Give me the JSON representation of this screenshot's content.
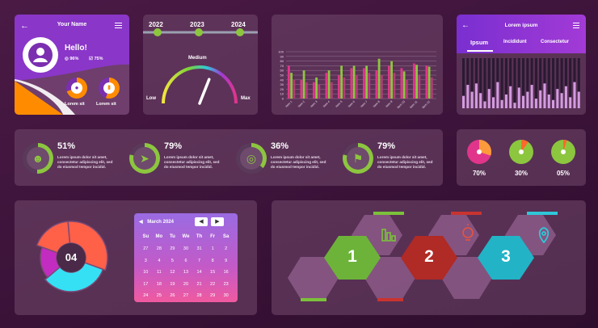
{
  "profile": {
    "title": "Your Name",
    "greeting": "Hello!",
    "stat1": "96%",
    "stat2": "75%",
    "caption1": "Lorem sit",
    "caption2": "Lorem sit"
  },
  "timeline": {
    "years": [
      "2022",
      "2023",
      "2024"
    ]
  },
  "gauge": {
    "label_low": "Low",
    "label_mid": "Medium",
    "label_max": "Max",
    "value_fraction": 0.62
  },
  "bar_chart": {
    "y_ticks": [
      "100",
      "90",
      "80",
      "70",
      "60",
      "50",
      "40",
      "30",
      "20",
      "10",
      "0"
    ],
    "categories": [
      "Item 1",
      "Item 2",
      "Item 3",
      "Item 4",
      "Item 5",
      "Item 6",
      "Item 7",
      "Item 8",
      "Item 9",
      "Item 10",
      "Item 11",
      "Item 12"
    ]
  },
  "chart_data": {
    "type": "bar",
    "categories": [
      "Item 1",
      "Item 2",
      "Item 3",
      "Item 4",
      "Item 5",
      "Item 6",
      "Item 7",
      "Item 8",
      "Item 9",
      "Item 10",
      "Item 11",
      "Item 12"
    ],
    "series": [
      {
        "color": "#e0358a",
        "values": [
          70,
          40,
          35,
          55,
          50,
          65,
          65,
          60,
          70,
          65,
          75,
          70
        ]
      },
      {
        "color": "#8cc63f",
        "values": [
          55,
          60,
          45,
          60,
          70,
          70,
          70,
          85,
          80,
          58,
          72,
          68
        ]
      },
      {
        "color": "#b33c7a",
        "values": [
          40,
          35,
          30,
          35,
          45,
          50,
          55,
          50,
          55,
          40,
          50,
          45
        ]
      }
    ],
    "ylim": [
      0,
      100
    ]
  },
  "tabs_panel": {
    "title": "Lorem ipsum",
    "tabs": [
      "Ipsum",
      "Incididunt",
      "Consectetur"
    ],
    "bars": [
      0.45,
      0.85,
      0.6,
      0.9,
      0.55,
      0.25,
      0.7,
      0.4,
      0.95,
      0.3,
      0.5,
      0.8,
      0.2,
      0.75,
      0.45,
      0.6,
      0.85,
      0.35,
      0.65,
      0.9,
      0.5,
      0.3,
      0.7,
      0.55,
      0.8,
      0.4,
      0.95,
      0.6
    ]
  },
  "stats": [
    {
      "value": "51%",
      "desc": [
        "Lorem ipsum dolor sit amet,",
        "consectetur adipiscing elit, sed",
        "do eiusmod tempor incidid."
      ],
      "icon": "person-icon"
    },
    {
      "value": "79%",
      "desc": [
        "Lorem ipsum dolor sit amet,",
        "consectetur adipiscing elit, sed",
        "do eiusmod tempor incidid."
      ],
      "icon": "rocket-icon"
    },
    {
      "value": "36%",
      "desc": [
        "Lorem ipsum dolor sit amet,",
        "consectetur adipiscing elit, sed",
        "do eiusmod tempor incidid."
      ],
      "icon": "target-icon"
    },
    {
      "value": "79%",
      "desc": [
        "Lorem ipsum dolor sit amet,",
        "consectetur adipiscing elit, sed",
        "do eiusmod tempor incidid."
      ],
      "icon": "flag-icon"
    }
  ],
  "pies": [
    {
      "label": "70%"
    },
    {
      "label": "30%"
    },
    {
      "label": "05%"
    }
  ],
  "donut": {
    "center": "04",
    "segments": [
      {
        "color": "#ff6048",
        "share": 0.38
      },
      {
        "color": "#35e0f5",
        "share": 0.3
      },
      {
        "color": "#c32cc0",
        "share": 0.2
      }
    ]
  },
  "calendar": {
    "month": "March 2024",
    "weekdays": [
      "Su",
      "Mo",
      "Tu",
      "We",
      "Th",
      "Fr",
      "Sa"
    ],
    "weeks": [
      [
        "27",
        "28",
        "29",
        "30",
        "31",
        "1",
        "2"
      ],
      [
        "3",
        "4",
        "5",
        "6",
        "7",
        "8",
        "9"
      ],
      [
        "10",
        "11",
        "12",
        "13",
        "14",
        "15",
        "16"
      ],
      [
        "17",
        "18",
        "19",
        "20",
        "21",
        "22",
        "23"
      ],
      [
        "24",
        "25",
        "26",
        "27",
        "28",
        "29",
        "30"
      ]
    ]
  },
  "hexes": {
    "labels": [
      "1",
      "2",
      "3"
    ],
    "colors": {
      "green": "#7bc13a",
      "red": "#c8342f",
      "cyan": "#2fc7d8"
    }
  }
}
